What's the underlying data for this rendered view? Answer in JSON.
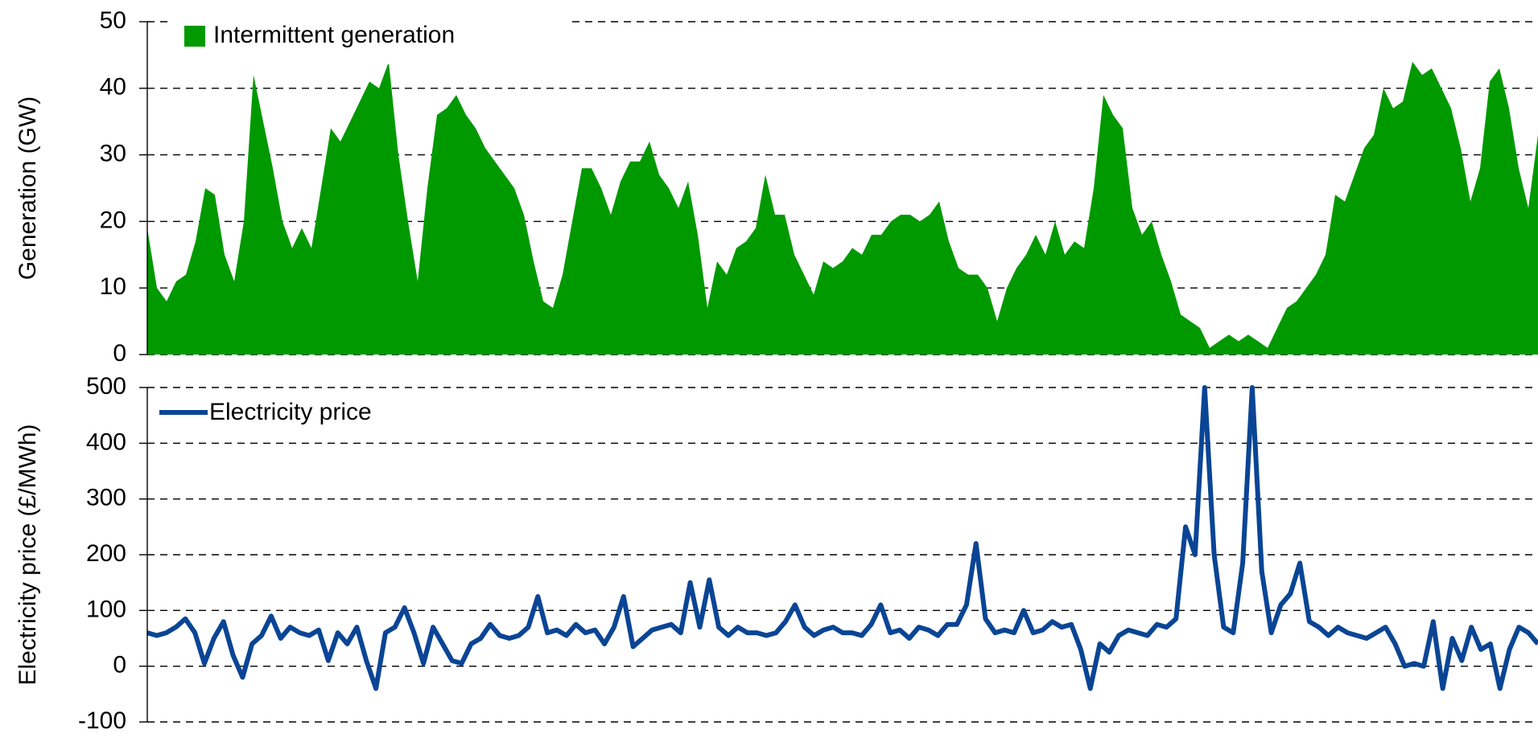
{
  "chart_data": [
    {
      "type": "area",
      "ylabel": "Generation (GW)",
      "ylim": [
        0,
        50
      ],
      "yticks": [
        0,
        10,
        20,
        30,
        40,
        50
      ],
      "grid": true,
      "legend": "upper left",
      "series": [
        {
          "name": "Intermittent generation",
          "color": "#009900",
          "values": [
            19,
            10,
            8,
            11,
            12,
            17,
            25,
            24,
            15,
            11,
            20,
            42,
            35,
            28,
            20,
            16,
            19,
            16,
            25,
            34,
            32,
            35,
            38,
            41,
            40,
            44,
            30,
            20,
            11,
            25,
            36,
            37,
            39,
            36,
            34,
            31,
            29,
            27,
            25,
            21,
            14,
            8,
            7,
            12,
            20,
            28,
            28,
            25,
            21,
            26,
            29,
            29,
            32,
            27,
            25,
            22,
            26,
            18,
            7,
            14,
            12,
            16,
            17,
            19,
            27,
            21,
            21,
            15,
            12,
            9,
            14,
            13,
            14,
            16,
            15,
            18,
            18,
            20,
            21,
            21,
            20,
            21,
            23,
            17,
            13,
            12,
            12,
            10,
            5,
            10,
            13,
            15,
            18,
            15,
            20,
            15,
            17,
            16,
            25,
            39,
            36,
            34,
            22,
            18,
            20,
            15,
            11,
            6,
            5,
            4,
            1,
            2,
            3,
            2,
            3,
            2,
            1,
            4,
            7,
            8,
            10,
            12,
            15,
            24,
            23,
            27,
            31,
            33,
            40,
            37,
            38,
            44,
            42,
            43,
            40,
            37,
            31,
            23,
            28,
            41,
            43,
            37,
            28,
            22,
            33
          ]
        }
      ]
    },
    {
      "type": "line",
      "ylabel": "Electricity price (£/MWh)",
      "ylim": [
        -100,
        500
      ],
      "yticks": [
        -100,
        0,
        100,
        200,
        300,
        400,
        500
      ],
      "grid": true,
      "legend": "upper left",
      "series": [
        {
          "name": "Electricity price",
          "color": "#0a4595",
          "values": [
            60,
            55,
            60,
            70,
            85,
            60,
            5,
            50,
            80,
            20,
            -20,
            40,
            55,
            90,
            50,
            70,
            60,
            55,
            65,
            10,
            60,
            40,
            70,
            10,
            -40,
            60,
            70,
            105,
            60,
            5,
            70,
            40,
            10,
            5,
            40,
            50,
            75,
            55,
            50,
            55,
            70,
            125,
            60,
            65,
            55,
            75,
            60,
            65,
            40,
            70,
            125,
            35,
            50,
            65,
            70,
            75,
            60,
            150,
            70,
            155,
            70,
            55,
            70,
            60,
            60,
            55,
            60,
            80,
            110,
            70,
            55,
            65,
            70,
            60,
            60,
            55,
            75,
            110,
            60,
            65,
            50,
            70,
            65,
            55,
            75,
            75,
            110,
            220,
            85,
            60,
            65,
            60,
            100,
            60,
            65,
            80,
            70,
            75,
            30,
            -40,
            40,
            25,
            55,
            65,
            60,
            55,
            75,
            70,
            85,
            250,
            200,
            500,
            200,
            70,
            60,
            185,
            500,
            170,
            60,
            110,
            130,
            185,
            80,
            70,
            55,
            70,
            60,
            55,
            50,
            60,
            70,
            40,
            0,
            5,
            0,
            80,
            -40,
            50,
            10,
            70,
            30,
            40,
            -40,
            30,
            70,
            60,
            40
          ]
        }
      ]
    }
  ]
}
